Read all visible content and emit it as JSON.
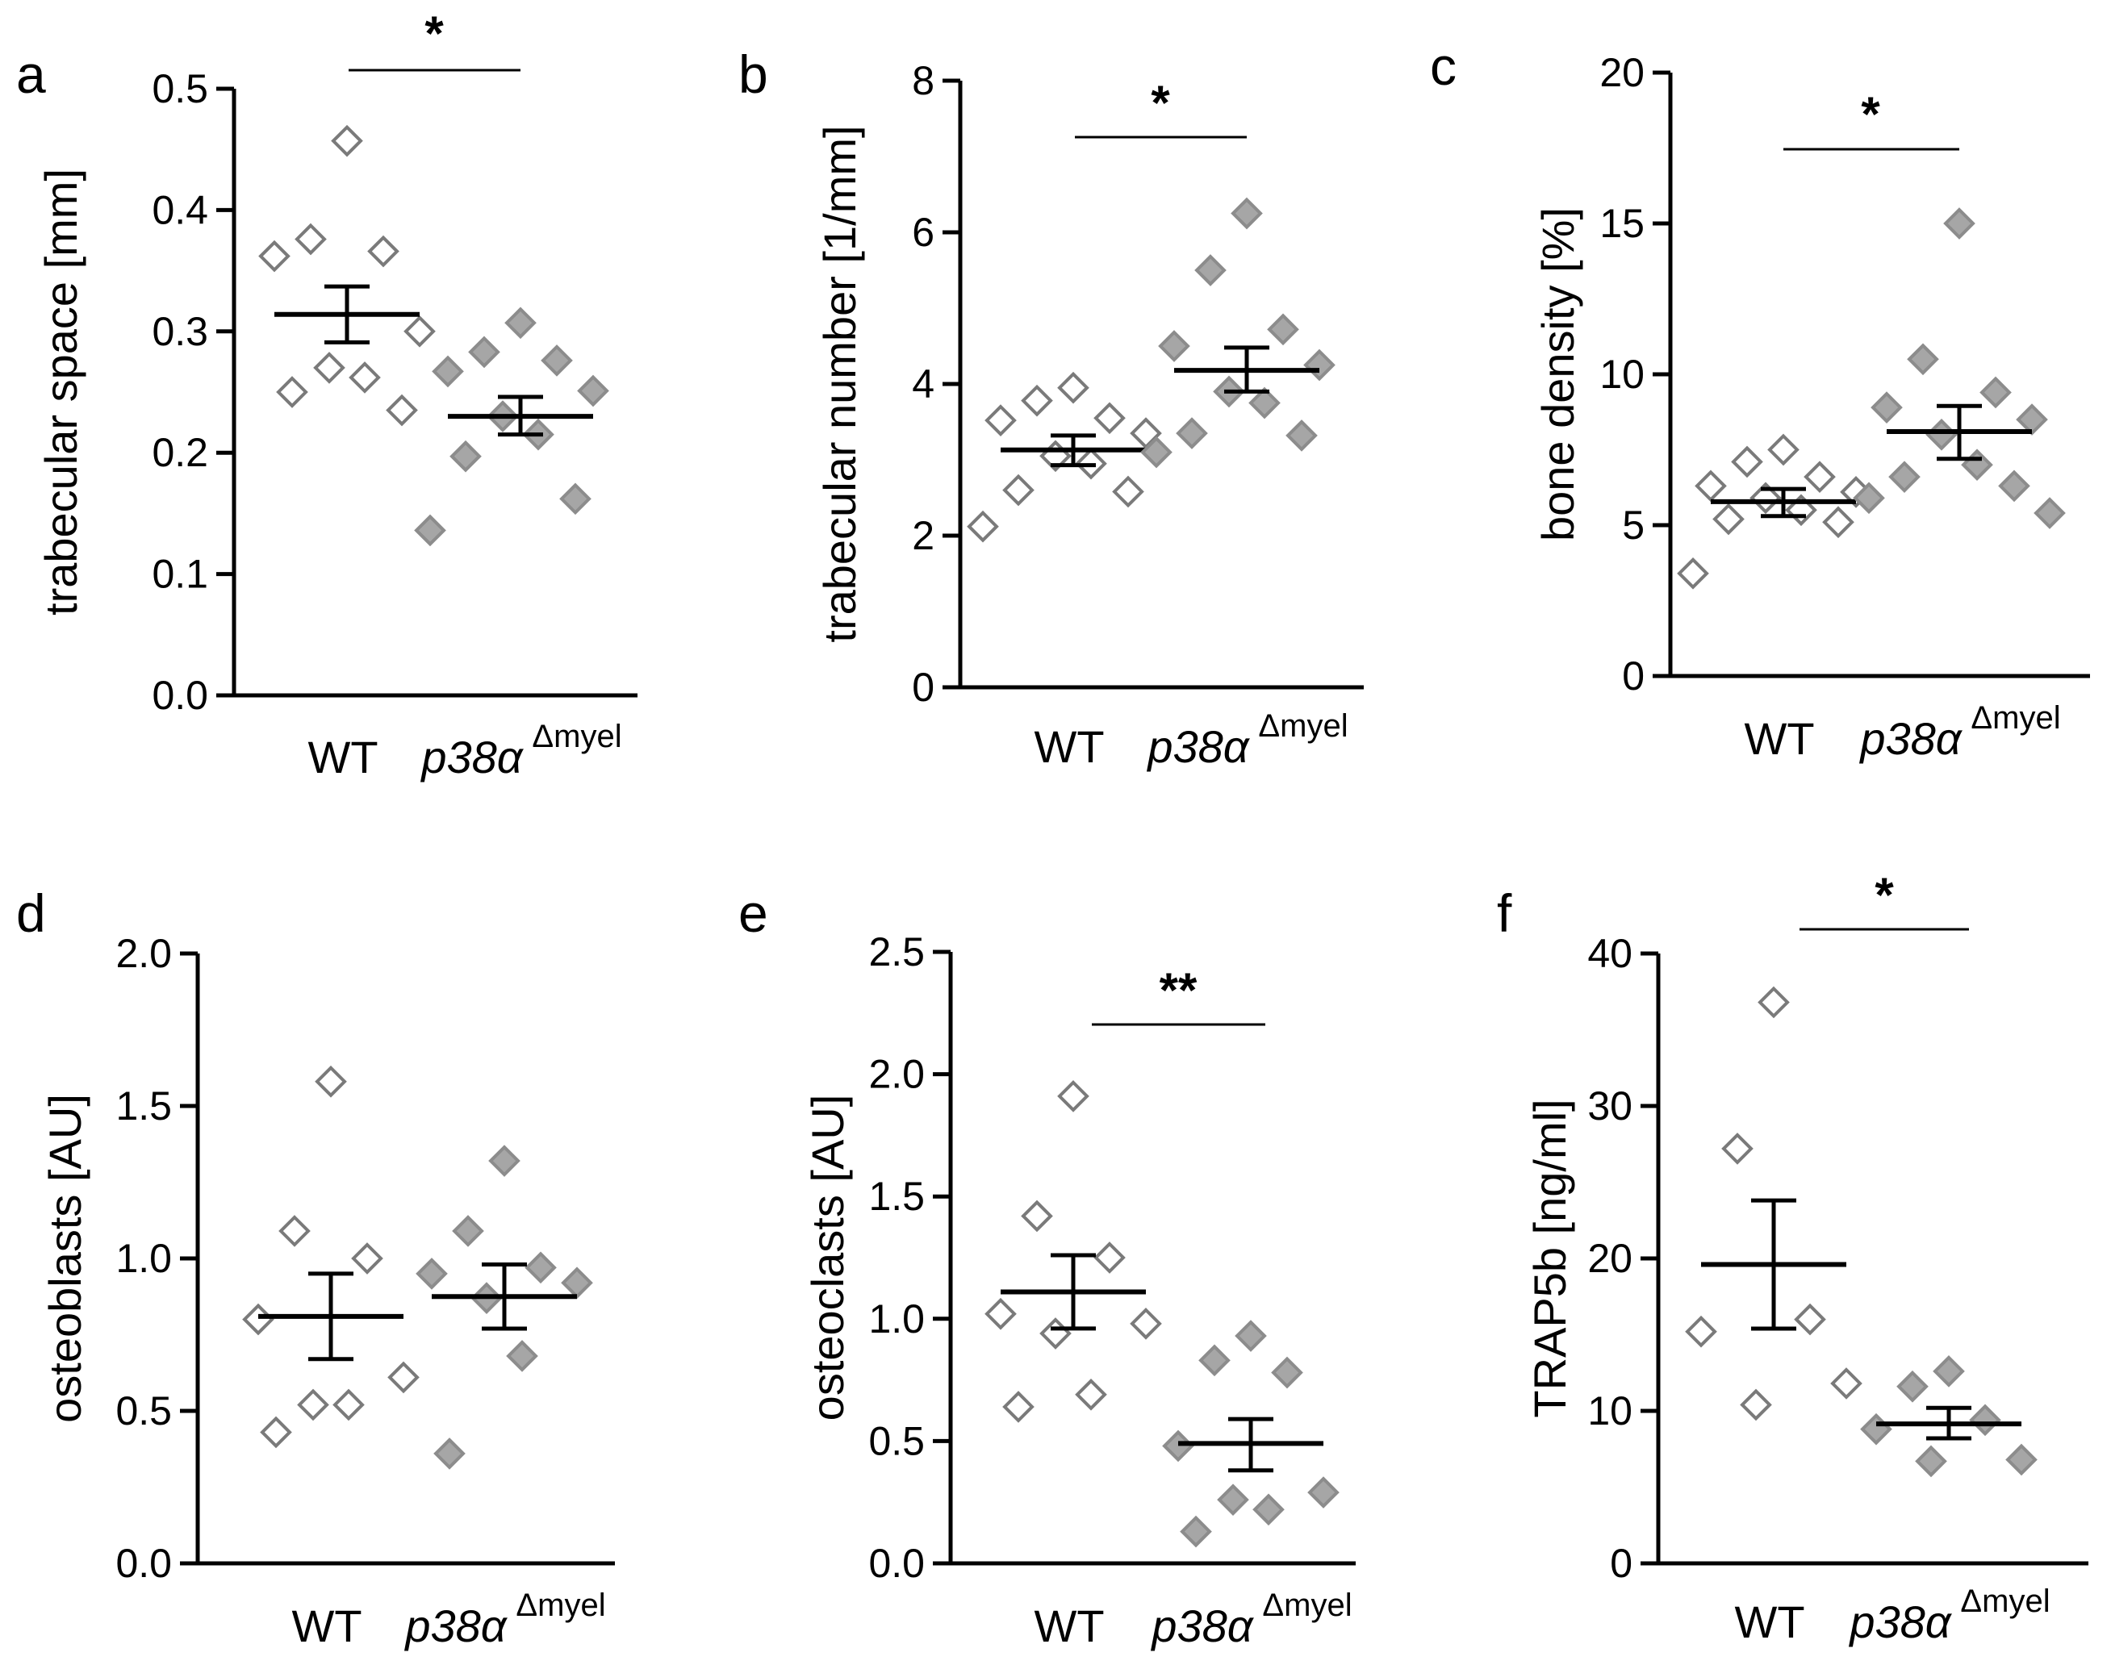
{
  "chart_data": [
    {
      "type": "scatter",
      "panel": "a",
      "ylabel": "trabecular space [mm]",
      "ylim": [
        0,
        0.5
      ],
      "yticks": [
        "0.0",
        "0.1",
        "0.2",
        "0.3",
        "0.4",
        "0.5"
      ],
      "categories": [
        "WT",
        "p38α"
      ],
      "group_superscript": "Δmyel",
      "series": [
        {
          "name": "WT",
          "values": [
            0.457,
            0.376,
            0.366,
            0.362,
            0.3,
            0.27,
            0.262,
            0.25,
            0.235
          ],
          "mean": 0.314,
          "sem_low": 0.291,
          "sem_high": 0.337
        },
        {
          "name": "p38α",
          "values": [
            0.307,
            0.283,
            0.276,
            0.267,
            0.251,
            0.23,
            0.215,
            0.197,
            0.162,
            0.136
          ],
          "mean": 0.23,
          "sem_low": 0.215,
          "sem_high": 0.246
        }
      ],
      "significance": "*"
    },
    {
      "type": "scatter",
      "panel": "b",
      "ylabel": "trabecular number [1/mm]",
      "ylim": [
        0,
        8
      ],
      "yticks": [
        "0",
        "2",
        "4",
        "6",
        "8"
      ],
      "categories": [
        "WT",
        "p38α"
      ],
      "group_superscript": "Δmyel",
      "series": [
        {
          "name": "WT",
          "values": [
            3.95,
            3.78,
            3.55,
            3.52,
            3.35,
            3.05,
            2.95,
            2.6,
            2.58,
            2.12
          ],
          "mean": 3.13,
          "sem_low": 2.93,
          "sem_high": 3.32
        },
        {
          "name": "p38α",
          "values": [
            6.25,
            5.5,
            4.72,
            4.5,
            4.25,
            3.9,
            3.75,
            3.35,
            3.32,
            3.1
          ],
          "mean": 4.18,
          "sem_low": 3.9,
          "sem_high": 4.48
        }
      ],
      "significance": "*"
    },
    {
      "type": "scatter",
      "panel": "c",
      "ylabel": "bone density [%]",
      "ylim": [
        0,
        20
      ],
      "yticks": [
        "0",
        "5",
        "10",
        "15",
        "20"
      ],
      "categories": [
        "WT",
        "p38α"
      ],
      "group_superscript": "Δmyel",
      "series": [
        {
          "name": "WT",
          "values": [
            7.5,
            7.1,
            6.6,
            6.3,
            6.1,
            5.9,
            5.5,
            5.2,
            5.1,
            3.4
          ],
          "mean": 5.78,
          "sem_low": 5.3,
          "sem_high": 6.2
        },
        {
          "name": "p38α",
          "values": [
            15.0,
            10.5,
            9.4,
            8.9,
            8.5,
            8.0,
            7.0,
            6.6,
            6.3,
            5.9,
            5.4
          ],
          "mean": 8.1,
          "sem_low": 7.2,
          "sem_high": 8.95
        }
      ],
      "significance": "*"
    },
    {
      "type": "scatter",
      "panel": "d",
      "ylabel": "osteoblasts [AU]",
      "ylim": [
        0,
        2.0
      ],
      "yticks": [
        "0.0",
        "0.5",
        "1.0",
        "1.5",
        "2.0"
      ],
      "categories": [
        "WT",
        "p38α"
      ],
      "group_superscript": "Δmyel",
      "series": [
        {
          "name": "WT",
          "values": [
            1.58,
            1.09,
            1.0,
            0.8,
            0.61,
            0.52,
            0.52,
            0.43
          ],
          "mean": 0.81,
          "sem_low": 0.67,
          "sem_high": 0.95
        },
        {
          "name": "p38α",
          "values": [
            1.32,
            1.09,
            0.97,
            0.95,
            0.92,
            0.87,
            0.68,
            0.36
          ],
          "mean": 0.875,
          "sem_low": 0.77,
          "sem_high": 0.98
        }
      ],
      "significance": ""
    },
    {
      "type": "scatter",
      "panel": "e",
      "ylabel": "osteoclasts [AU]",
      "ylim": [
        0,
        2.5
      ],
      "yticks": [
        "0.0",
        "0.5",
        "1.0",
        "1.5",
        "2.0",
        "2.5"
      ],
      "categories": [
        "WT",
        "p38α"
      ],
      "group_superscript": "Δmyel",
      "series": [
        {
          "name": "WT",
          "values": [
            1.91,
            1.42,
            1.25,
            1.02,
            0.98,
            0.94,
            0.69,
            0.64
          ],
          "mean": 1.11,
          "sem_low": 0.96,
          "sem_high": 1.26
        },
        {
          "name": "p38α",
          "values": [
            0.93,
            0.83,
            0.78,
            0.48,
            0.29,
            0.26,
            0.22,
            0.13
          ],
          "mean": 0.49,
          "sem_low": 0.38,
          "sem_high": 0.59
        },
        {
          "name": "",
          "values": [],
          "mean": null
        }
      ],
      "significance": "**"
    },
    {
      "type": "scatter",
      "panel": "f",
      "ylabel": "TRAP5b [ng/ml]",
      "ylim": [
        0,
        40
      ],
      "yticks": [
        "0",
        "10",
        "20",
        "30",
        "40"
      ],
      "categories": [
        "WT",
        "p38α"
      ],
      "group_superscript": "Δmyel",
      "series": [
        {
          "name": "WT",
          "values": [
            36.8,
            27.2,
            16.0,
            15.2,
            11.8,
            10.4
          ],
          "mean": 19.6,
          "sem_low": 15.4,
          "sem_high": 23.8
        },
        {
          "name": "p38α",
          "values": [
            12.6,
            11.6,
            9.4,
            8.8,
            6.8,
            6.7
          ],
          "mean": 9.15,
          "sem_low": 8.2,
          "sem_high": 10.2
        }
      ],
      "significance": "*"
    }
  ]
}
